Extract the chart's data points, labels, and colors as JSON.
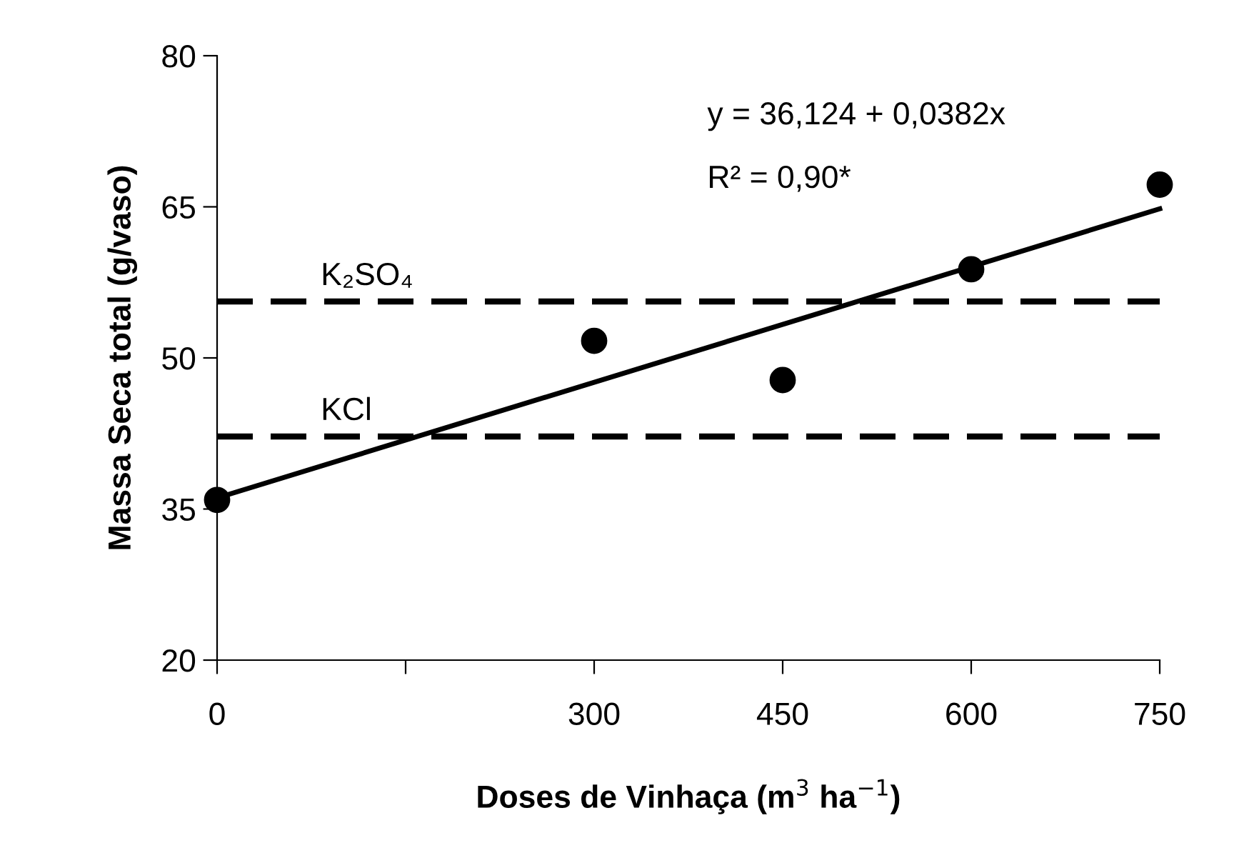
{
  "chart_data": {
    "type": "scatter",
    "xlabel": "Doses de Vinhaça (m$^{3}$ ha$^{−1}$)",
    "ylabel": "Massa Seca total (g/vaso)",
    "x": [
      0,
      300,
      450,
      600,
      750
    ],
    "series": [
      {
        "color": "#000000",
        "marker": "circle",
        "values": [
          35.9,
          51.7,
          47.8,
          58.8,
          67.2
        ]
      },
      {
        "type": "line",
        "color": "#000000",
        "line_style": "solid",
        "x": [
          0,
          750
        ],
        "values": [
          36.1,
          64.8
        ]
      }
    ],
    "ref_lines": [
      {
        "axis": "y",
        "value": 55.6,
        "label": "K₂SO₄",
        "color": "#000000",
        "line_style": "dashed"
      },
      {
        "axis": "y",
        "value": 42.2,
        "label": "KCl",
        "color": "#000000",
        "line_style": "dashed"
      }
    ],
    "annotations": [
      "y = 36,124 + 0,0382x",
      "R² = 0,90*"
    ],
    "xlim": [
      0,
      750
    ],
    "ylim": [
      20,
      80
    ],
    "xticks": [
      0,
      {
        "value": 150,
        "label": null
      },
      300,
      450,
      600,
      750
    ],
    "yticks": [
      20,
      35,
      50,
      65,
      80
    ],
    "grid": false,
    "legend": false
  }
}
